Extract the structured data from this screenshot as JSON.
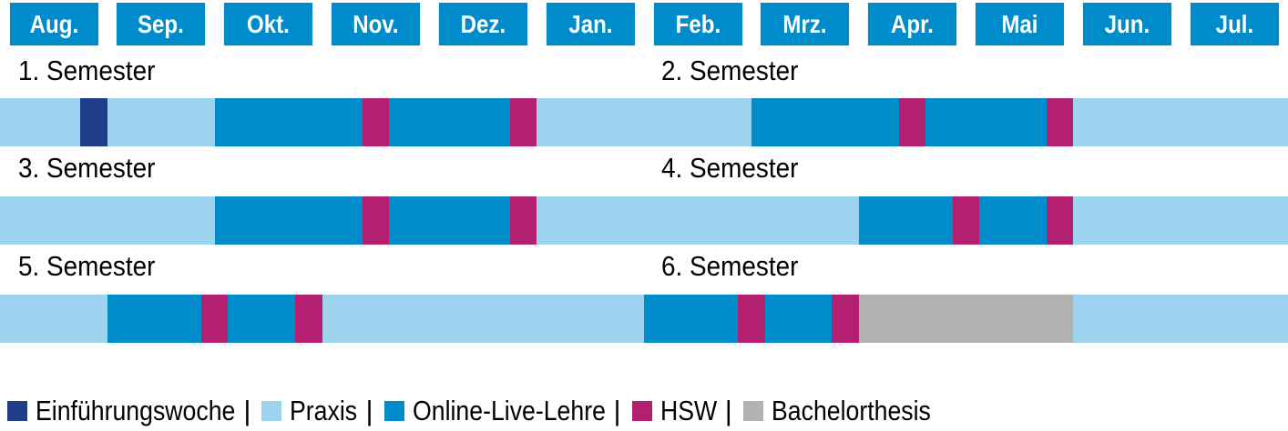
{
  "chart_data": {
    "type": "timeline",
    "months": [
      "Aug.",
      "Sep.",
      "Okt.",
      "Nov.",
      "Dez.",
      "Jan.",
      "Feb.",
      "Mrz.",
      "Apr.",
      "Mai",
      "Jun.",
      "Jul."
    ],
    "legend": [
      {
        "key": "einf",
        "label": "Einführungswoche",
        "color": "#1f3c88"
      },
      {
        "key": "praxis",
        "label": "Praxis",
        "color": "#9dd3ee"
      },
      {
        "key": "online",
        "label": "Online-Live-Lehre",
        "color": "#008bca"
      },
      {
        "key": "hsw",
        "label": "HSW",
        "color": "#b3206f"
      },
      {
        "key": "ba",
        "label": "Bachelorthesis",
        "color": "#b2b2b2"
      }
    ],
    "legend_separator": "|",
    "rows": [
      {
        "labels": [
          "1. Semester",
          "2. Semester"
        ],
        "segments": [
          {
            "start": 0.0,
            "end": 0.75,
            "kind": "praxis"
          },
          {
            "start": 0.75,
            "end": 1.0,
            "kind": "einf"
          },
          {
            "start": 1.0,
            "end": 2.0,
            "kind": "praxis"
          },
          {
            "start": 2.0,
            "end": 3.375,
            "kind": "online"
          },
          {
            "start": 3.375,
            "end": 3.625,
            "kind": "hsw"
          },
          {
            "start": 3.625,
            "end": 4.75,
            "kind": "online"
          },
          {
            "start": 4.75,
            "end": 5.0,
            "kind": "hsw"
          },
          {
            "start": 5.0,
            "end": 7.0,
            "kind": "praxis"
          },
          {
            "start": 7.0,
            "end": 8.375,
            "kind": "online"
          },
          {
            "start": 8.375,
            "end": 8.625,
            "kind": "hsw"
          },
          {
            "start": 8.625,
            "end": 9.75,
            "kind": "online"
          },
          {
            "start": 9.75,
            "end": 10.0,
            "kind": "hsw"
          },
          {
            "start": 10.0,
            "end": 12.0,
            "kind": "praxis"
          }
        ]
      },
      {
        "labels": [
          "3. Semester",
          "4. Semester"
        ],
        "segments": [
          {
            "start": 0.0,
            "end": 2.0,
            "kind": "praxis"
          },
          {
            "start": 2.0,
            "end": 3.375,
            "kind": "online"
          },
          {
            "start": 3.375,
            "end": 3.625,
            "kind": "hsw"
          },
          {
            "start": 3.625,
            "end": 4.75,
            "kind": "online"
          },
          {
            "start": 4.75,
            "end": 5.0,
            "kind": "hsw"
          },
          {
            "start": 5.0,
            "end": 8.0,
            "kind": "praxis"
          },
          {
            "start": 8.0,
            "end": 8.875,
            "kind": "online"
          },
          {
            "start": 8.875,
            "end": 9.125,
            "kind": "hsw"
          },
          {
            "start": 9.125,
            "end": 9.75,
            "kind": "online"
          },
          {
            "start": 9.75,
            "end": 10.0,
            "kind": "hsw"
          },
          {
            "start": 10.0,
            "end": 12.0,
            "kind": "praxis"
          }
        ]
      },
      {
        "labels": [
          "5. Semester",
          "6. Semester"
        ],
        "segments": [
          {
            "start": 0.0,
            "end": 1.0,
            "kind": "praxis"
          },
          {
            "start": 1.0,
            "end": 1.875,
            "kind": "online"
          },
          {
            "start": 1.875,
            "end": 2.125,
            "kind": "hsw"
          },
          {
            "start": 2.125,
            "end": 2.75,
            "kind": "online"
          },
          {
            "start": 2.75,
            "end": 3.0,
            "kind": "hsw"
          },
          {
            "start": 3.0,
            "end": 6.0,
            "kind": "praxis"
          },
          {
            "start": 6.0,
            "end": 6.875,
            "kind": "online"
          },
          {
            "start": 6.875,
            "end": 7.125,
            "kind": "hsw"
          },
          {
            "start": 7.125,
            "end": 7.75,
            "kind": "online"
          },
          {
            "start": 7.75,
            "end": 8.0,
            "kind": "hsw"
          },
          {
            "start": 8.0,
            "end": 10.0,
            "kind": "ba"
          },
          {
            "start": 10.0,
            "end": 12.0,
            "kind": "praxis"
          }
        ]
      }
    ]
  }
}
